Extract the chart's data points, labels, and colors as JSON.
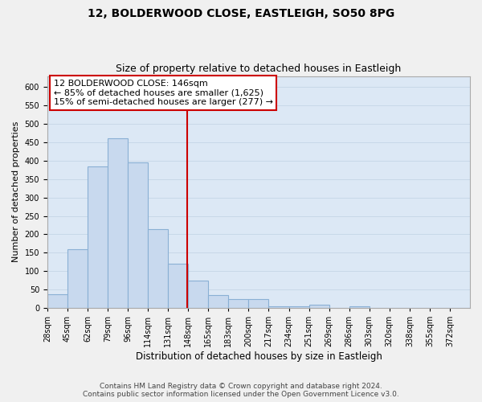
{
  "title1": "12, BOLDERWOOD CLOSE, EASTLEIGH, SO50 8PG",
  "title2": "Size of property relative to detached houses in Eastleigh",
  "xlabel": "Distribution of detached houses by size in Eastleigh",
  "ylabel": "Number of detached properties",
  "footer1": "Contains HM Land Registry data © Crown copyright and database right 2024.",
  "footer2": "Contains public sector information licensed under the Open Government Licence v3.0.",
  "annotation_title": "12 BOLDERWOOD CLOSE: 146sqm",
  "annotation_line1": "← 85% of detached houses are smaller (1,625)",
  "annotation_line2": "15% of semi-detached houses are larger (277) →",
  "property_value": 146,
  "bar_labels": [
    "28sqm",
    "45sqm",
    "62sqm",
    "79sqm",
    "96sqm",
    "114sqm",
    "131sqm",
    "148sqm",
    "165sqm",
    "183sqm",
    "200sqm",
    "217sqm",
    "234sqm",
    "251sqm",
    "269sqm",
    "286sqm",
    "303sqm",
    "320sqm",
    "338sqm",
    "355sqm",
    "372sqm"
  ],
  "bar_values": [
    38,
    160,
    385,
    460,
    395,
    215,
    120,
    75,
    35,
    25,
    25,
    5,
    5,
    8,
    0,
    5,
    0,
    0,
    0,
    0,
    0
  ],
  "bar_color": "#c8d9ee",
  "bar_edge_color": "#8ab0d4",
  "vline_color": "#cc0000",
  "annotation_box_color": "#ffffff",
  "annotation_box_edge": "#cc0000",
  "grid_color": "#c8d8e8",
  "bg_color": "#dce8f5",
  "fig_bg_color": "#f0f0f0",
  "ylim": [
    0,
    630
  ],
  "yticks": [
    0,
    50,
    100,
    150,
    200,
    250,
    300,
    350,
    400,
    450,
    500,
    550,
    600
  ],
  "title_fontsize": 10,
  "subtitle_fontsize": 9,
  "ylabel_fontsize": 8,
  "xlabel_fontsize": 8.5,
  "tick_fontsize": 7,
  "annotation_fontsize": 8,
  "footer_fontsize": 6.5
}
